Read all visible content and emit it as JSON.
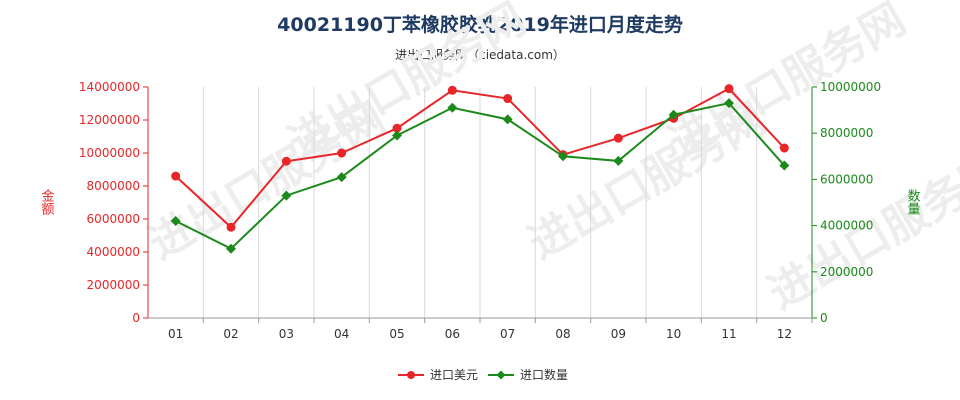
{
  "title": "40021190丁苯橡胶胶乳2019年进口月度走势",
  "subtitle": "进出口服务网（ciedata.com）",
  "watermark": "进出口服务网",
  "chart_data": {
    "type": "line",
    "x": [
      "01",
      "02",
      "03",
      "04",
      "05",
      "06",
      "07",
      "08",
      "09",
      "10",
      "11",
      "12"
    ],
    "series": [
      {
        "name": "进口美元",
        "axis": "left",
        "color": "#e8262a",
        "values": [
          8600000,
          5500000,
          9500000,
          10000000,
          11500000,
          13800000,
          13300000,
          9900000,
          10900000,
          12100000,
          13900000,
          10300000
        ]
      },
      {
        "name": "进口数量",
        "axis": "right",
        "color": "#1b8a1b",
        "values": [
          4200000,
          3000000,
          5300000,
          6100000,
          7900000,
          9100000,
          8600000,
          7000000,
          6800000,
          8800000,
          9300000,
          6600000
        ]
      }
    ],
    "ylabel_left": "金额",
    "ylabel_right": "数量",
    "ylim_left": [
      0,
      14000000
    ],
    "ylim_right": [
      0,
      10000000
    ],
    "yticks_left": [
      "0",
      "2000000",
      "4000000",
      "6000000",
      "8000000",
      "10000000",
      "12000000",
      "14000000"
    ],
    "yticks_right": [
      "0",
      "2000000",
      "4000000",
      "6000000",
      "8000000",
      "10000000"
    ],
    "grid": "vertical",
    "legend": "bottom-center"
  }
}
